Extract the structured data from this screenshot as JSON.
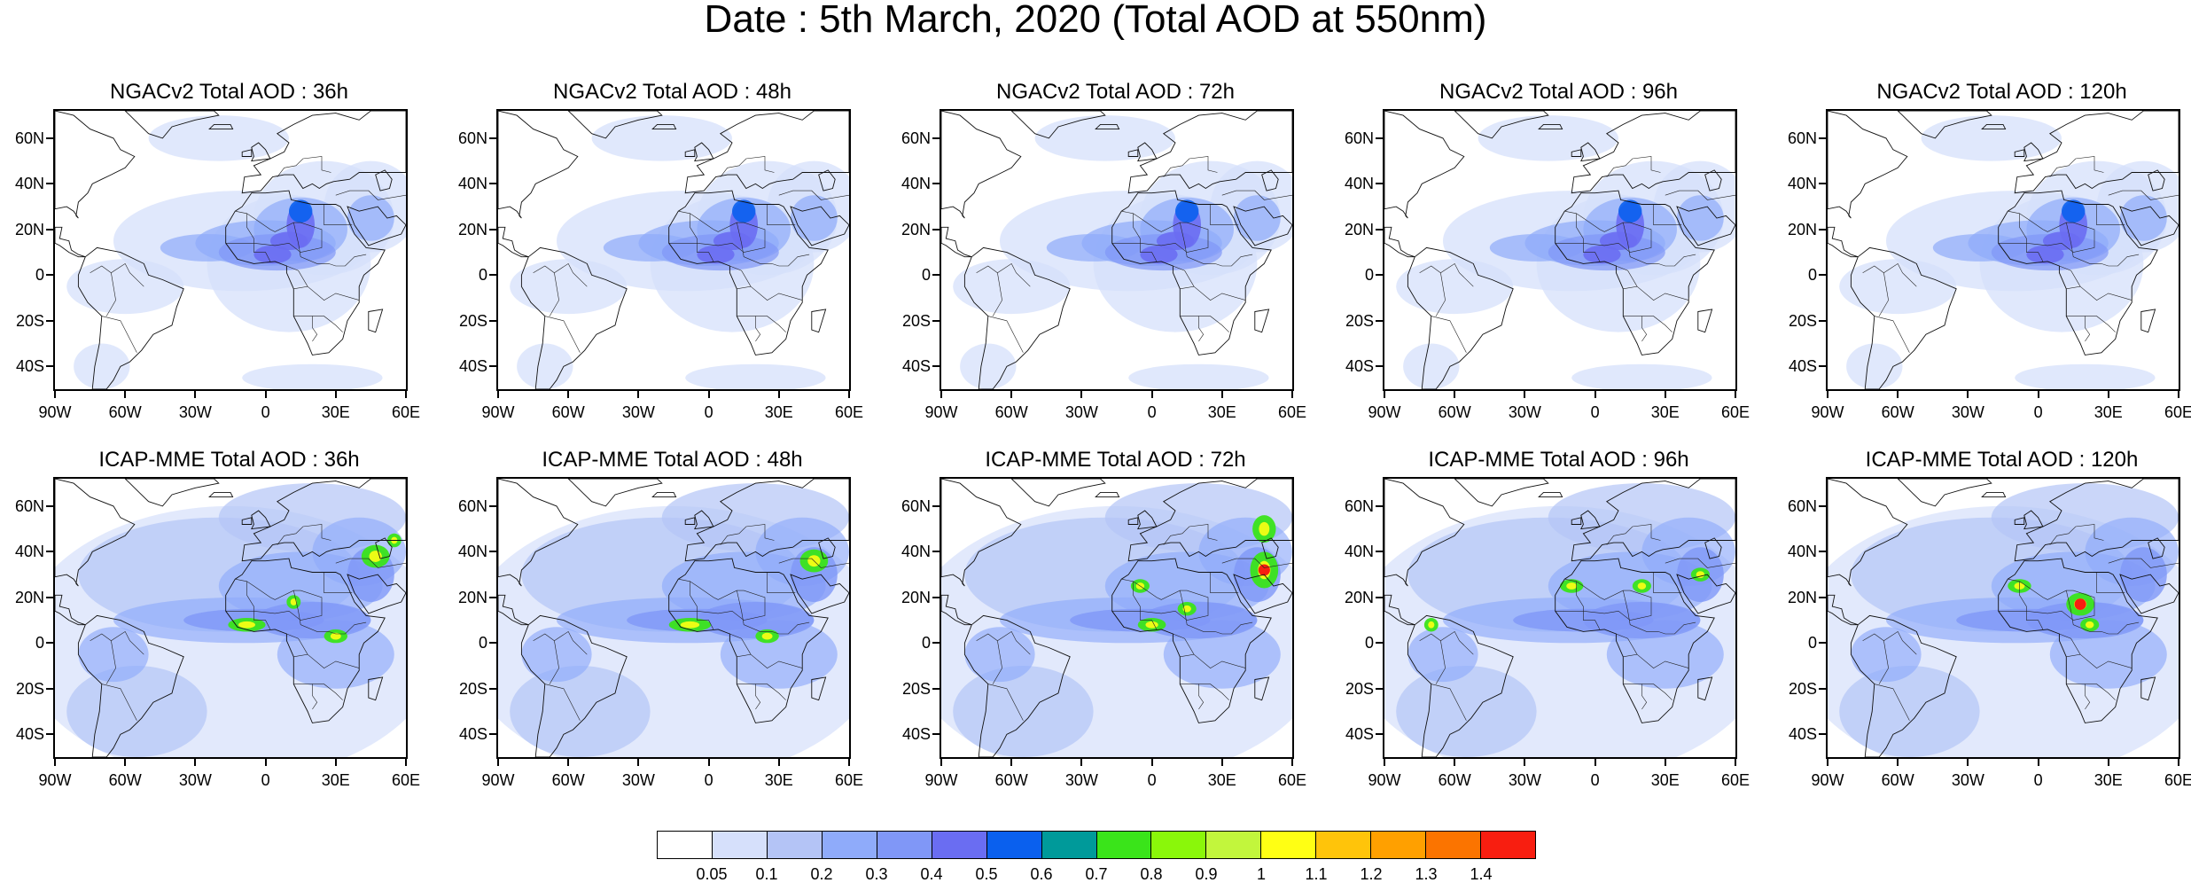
{
  "title": "Date : 5th March, 2020 (Total AOD at 550nm)",
  "panels": [
    {
      "title": "NGACv2 Total AOD : 36h",
      "model": "NGACv2",
      "lead": "36h"
    },
    {
      "title": "NGACv2 Total AOD : 48h",
      "model": "NGACv2",
      "lead": "48h"
    },
    {
      "title": "NGACv2 Total AOD : 72h",
      "model": "NGACv2",
      "lead": "72h"
    },
    {
      "title": "NGACv2 Total AOD : 96h",
      "model": "NGACv2",
      "lead": "96h"
    },
    {
      "title": "NGACv2 Total AOD : 120h",
      "model": "NGACv2",
      "lead": "120h"
    },
    {
      "title": "ICAP-MME Total AOD : 36h",
      "model": "ICAP-MME",
      "lead": "36h"
    },
    {
      "title": "ICAP-MME Total AOD : 48h",
      "model": "ICAP-MME",
      "lead": "48h"
    },
    {
      "title": "ICAP-MME Total AOD : 72h",
      "model": "ICAP-MME",
      "lead": "72h"
    },
    {
      "title": "ICAP-MME Total AOD : 96h",
      "model": "ICAP-MME",
      "lead": "96h"
    },
    {
      "title": "ICAP-MME Total AOD : 120h",
      "model": "ICAP-MME",
      "lead": "120h"
    }
  ],
  "lat_labels": [
    "60N",
    "40N",
    "20N",
    "0",
    "20S",
    "40S"
  ],
  "lat_values": [
    60,
    40,
    20,
    0,
    -20,
    -40
  ],
  "lon_labels": [
    "90W",
    "60W",
    "30W",
    "0",
    "30E",
    "60E"
  ],
  "lon_values": [
    -90,
    -60,
    -30,
    0,
    30,
    60
  ],
  "map_extent": {
    "lon": [
      -90,
      60
    ],
    "lat": [
      -50,
      72
    ]
  },
  "colorbar": {
    "labels": [
      "0.05",
      "0.1",
      "0.2",
      "0.3",
      "0.4",
      "0.5",
      "0.6",
      "0.7",
      "0.8",
      "0.9",
      "1",
      "1.1",
      "1.2",
      "1.3",
      "1.4"
    ],
    "colors": [
      "#ffffff",
      "#d6e0fb",
      "#b4c4f6",
      "#8fabfa",
      "#8097f7",
      "#6a6df2",
      "#0a60ee",
      "#009a9a",
      "#3ae41a",
      "#8af70a",
      "#c2f63c",
      "#ffff14",
      "#ffc40a",
      "#ffa000",
      "#fb7400",
      "#f81e10"
    ]
  }
}
